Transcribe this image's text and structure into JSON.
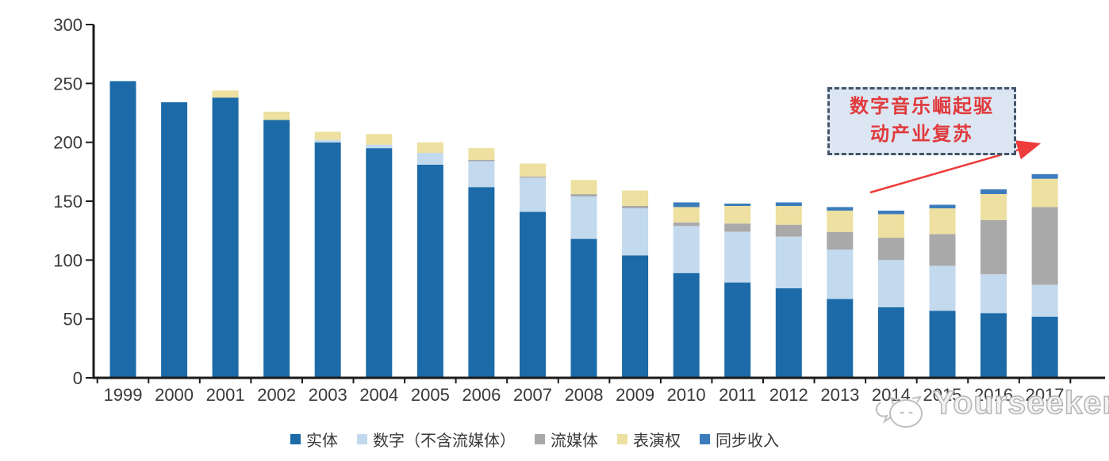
{
  "chart_data": {
    "type": "bar",
    "stacked": true,
    "title": "",
    "xlabel": "",
    "ylabel": "",
    "categories": [
      "1999",
      "2000",
      "2001",
      "2002",
      "2003",
      "2004",
      "2005",
      "2006",
      "2007",
      "2008",
      "2009",
      "2010",
      "2011",
      "2012",
      "2013",
      "2014",
      "2015",
      "2016",
      "2017"
    ],
    "series": [
      {
        "name": "实体",
        "color": "#1C6BA8",
        "values": [
          252,
          234,
          238,
          219,
          200,
          195,
          181,
          162,
          141,
          118,
          104,
          89,
          81,
          76,
          67,
          60,
          57,
          55,
          52
        ]
      },
      {
        "name": "数字（不含流媒体）",
        "color": "#C3D9EE",
        "values": [
          0,
          0,
          0,
          0,
          2,
          3,
          10,
          22,
          29,
          36,
          40,
          40,
          43,
          44,
          42,
          40,
          38,
          33,
          27
        ]
      },
      {
        "name": "流媒体",
        "color": "#A9A9A9",
        "values": [
          0,
          0,
          0,
          0,
          0,
          0,
          0,
          1,
          1,
          2,
          2,
          3,
          7,
          10,
          15,
          19,
          27,
          46,
          66
        ]
      },
      {
        "name": "表演权",
        "color": "#EDE0A0",
        "values": [
          0,
          0,
          6,
          7,
          7,
          9,
          9,
          10,
          11,
          12,
          13,
          13,
          15,
          16,
          18,
          20,
          22,
          22,
          24
        ]
      },
      {
        "name": "同步收入",
        "color": "#3D7CBC",
        "values": [
          0,
          0,
          0,
          0,
          0,
          0,
          0,
          0,
          0,
          0,
          0,
          4,
          2,
          3,
          3,
          3,
          3,
          4,
          4
        ]
      }
    ],
    "ylim": [
      0,
      300
    ],
    "yticks": [
      0,
      50,
      100,
      150,
      200,
      250,
      300
    ],
    "grid": false,
    "legend_position": "bottom",
    "axis_color": "#1a1a1a",
    "tick_label_color": "#3A3A3A"
  },
  "annotation": {
    "line1": "数字音乐崛起驱",
    "line2": "动产业复苏",
    "text_color": "#E03A3C",
    "border_color": "#44546A",
    "fill_color": "#DCE6F2",
    "arrow_color": "#EE3B3B"
  },
  "watermark": {
    "text": "Yourseeker"
  }
}
